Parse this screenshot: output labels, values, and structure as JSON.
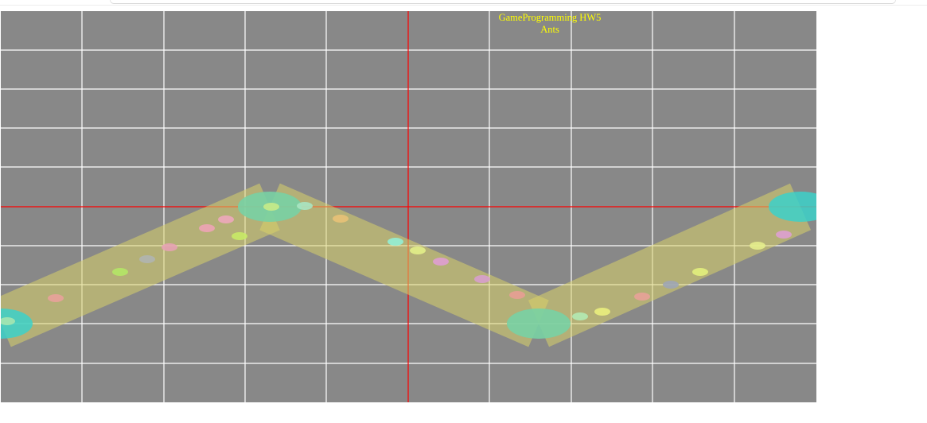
{
  "hud": {
    "line1": "GameProgramming HW5",
    "line2": "Ants"
  },
  "colors": {
    "background": "#888888",
    "grid": "#ffffff",
    "axis": "#ff0000",
    "path": "#d9d26a",
    "nest": "#3cd1c9",
    "title": "#ffff00"
  }
}
